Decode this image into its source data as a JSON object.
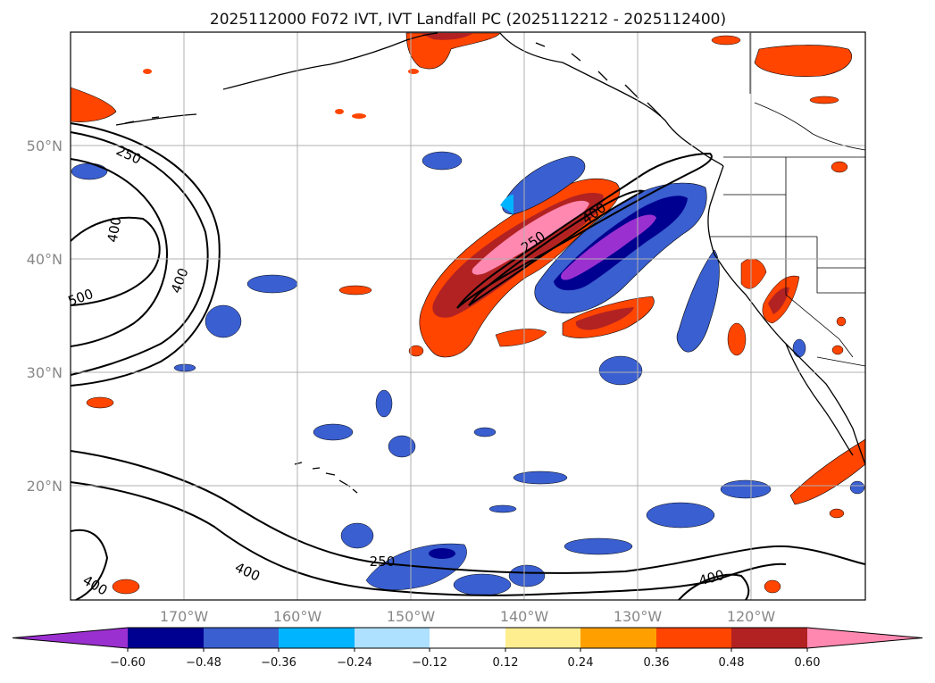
{
  "title": "2025112000 F072 IVT, IVT Landfall PC (2025112212 - 2025112400)",
  "lat_labels": [
    "50°N",
    "40°N",
    "30°N",
    "20°N"
  ],
  "lon_labels": [
    "170°W",
    "160°W",
    "150°W",
    "140°W",
    "130°W",
    "120°W"
  ],
  "contour_labels": [
    "250",
    "400",
    "400",
    "500",
    "250",
    "400",
    "250",
    "400",
    "400"
  ],
  "colorbar": {
    "tick_labels": [
      "−0.60",
      "−0.48",
      "−0.36",
      "−0.24",
      "−0.12",
      "0.12",
      "0.24",
      "0.36",
      "0.48",
      "0.60"
    ],
    "colors": [
      "#9b30d0",
      "#000090",
      "#3a5fd0",
      "#00b4ff",
      "#aee0ff",
      "#ffffff",
      "#ffee90",
      "#ffa000",
      "#ff4500",
      "#b22222",
      "#ff88b0"
    ]
  }
}
